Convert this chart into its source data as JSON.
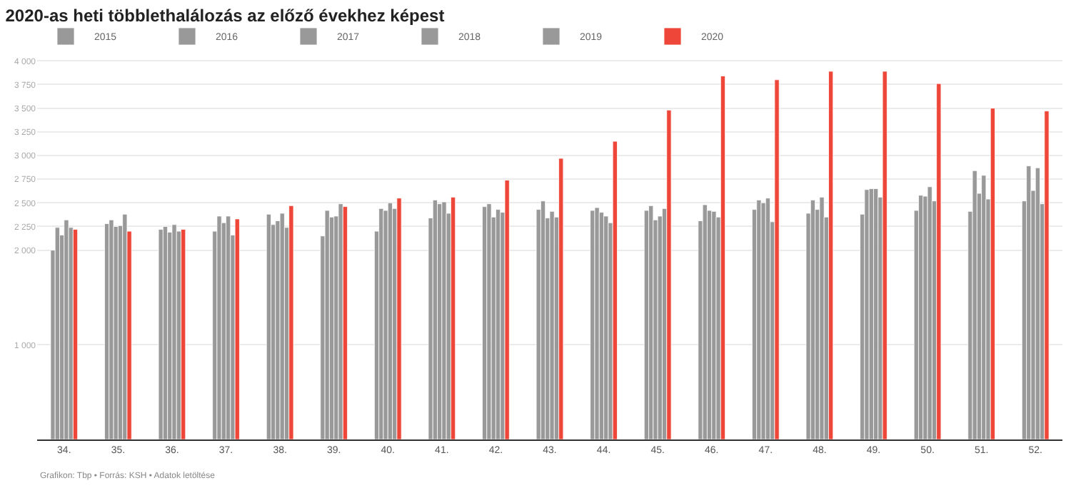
{
  "chart_data": {
    "type": "bar",
    "title": "2020-as heti többlethalálozás az előző évekhez képest",
    "categories": [
      "34.",
      "35.",
      "36.",
      "37.",
      "38.",
      "39.",
      "40.",
      "41.",
      "42.",
      "43.",
      "44.",
      "45.",
      "46.",
      "47.",
      "48.",
      "49.",
      "50.",
      "51.",
      "52."
    ],
    "series": [
      {
        "name": "2015",
        "color": "#999999",
        "values": [
          2000,
          2280,
          2220,
          2200,
          2380,
          2150,
          2200,
          2340,
          2460,
          2430,
          2420,
          2420,
          2310,
          2430,
          2390,
          2380,
          2420,
          2410,
          2520
        ]
      },
      {
        "name": "2016",
        "color": "#999999",
        "values": [
          2240,
          2320,
          2250,
          2360,
          2270,
          2420,
          2440,
          2530,
          2490,
          2520,
          2450,
          2470,
          2480,
          2530,
          2530,
          2640,
          2580,
          2840,
          2890
        ]
      },
      {
        "name": "2017",
        "color": "#999999",
        "values": [
          2160,
          2250,
          2190,
          2290,
          2310,
          2350,
          2420,
          2490,
          2350,
          2340,
          2400,
          2320,
          2420,
          2500,
          2430,
          2650,
          2570,
          2600,
          2630
        ]
      },
      {
        "name": "2018",
        "color": "#999999",
        "values": [
          2320,
          2260,
          2270,
          2360,
          2390,
          2360,
          2500,
          2510,
          2430,
          2410,
          2360,
          2360,
          2410,
          2550,
          2560,
          2650,
          2670,
          2790,
          2870
        ]
      },
      {
        "name": "2019",
        "color": "#999999",
        "values": [
          2240,
          2380,
          2200,
          2160,
          2240,
          2490,
          2440,
          2390,
          2400,
          2350,
          2290,
          2440,
          2350,
          2300,
          2350,
          2560,
          2520,
          2540,
          2490
        ]
      },
      {
        "name": "2020",
        "color": "#ee4638",
        "values": [
          2220,
          2200,
          2220,
          2330,
          2470,
          2460,
          2550,
          2560,
          2740,
          2970,
          3150,
          3480,
          3840,
          3800,
          3890,
          3890,
          3760,
          3500,
          3470
        ]
      }
    ],
    "ylim": [
      0,
      4040
    ],
    "yticks": [
      {
        "value": 1000,
        "label": "1 000"
      },
      {
        "value": 2000,
        "label": "2 000"
      },
      {
        "value": 2250,
        "label": "2 250"
      },
      {
        "value": 2500,
        "label": "2 500"
      },
      {
        "value": 2750,
        "label": "2 750"
      },
      {
        "value": 3000,
        "label": "3 000"
      },
      {
        "value": 3250,
        "label": "3 250"
      },
      {
        "value": 3500,
        "label": "3 500"
      },
      {
        "value": 3750,
        "label": "3 750"
      },
      {
        "value": 4000,
        "label": "4 000"
      }
    ],
    "grid": "y",
    "legend": "top left",
    "annotations": [
      "Grafikon: Tbp • Forrás: KSH • Adatok letöltése"
    ]
  }
}
